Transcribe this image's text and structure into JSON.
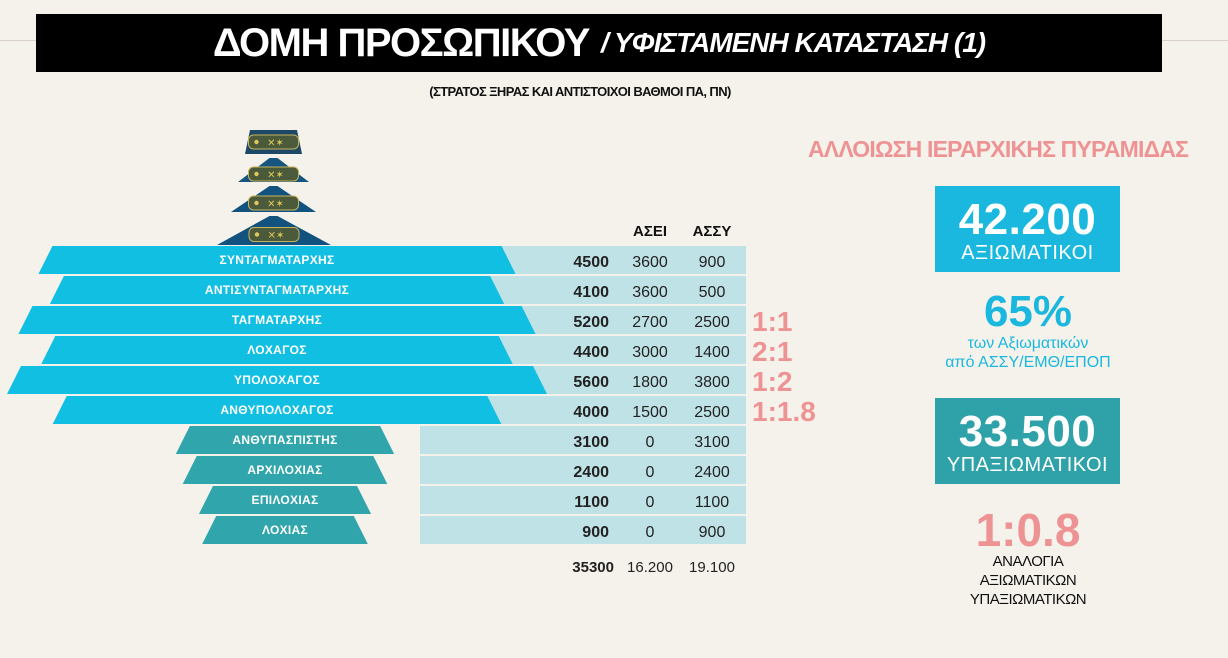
{
  "header": {
    "title_main": "ΔΟΜΗ ΠΡΟΣΩΠΙΚΟΥ",
    "title_sub": "/ ΥΦΙΣΤΑΜΕΝΗ ΚΑΤΑΣΤΑΣΗ  (1)",
    "subtitle": "(ΣΤΡΑΤΟΣ ΞΗΡΑΣ ΚΑΙ ΑΝΤΙΣΤΟΙΧΟΙ ΒΑΘΜΟΙ ΠΑ, ΠΝ)"
  },
  "colors": {
    "officer_bar": "#11bfe3",
    "nco_bar": "#30a5ab",
    "table_row": "#bfe2e6",
    "general_tier": "#12527e",
    "ratio": "#ee9393"
  },
  "insignia": {
    "icon": "rank-epaulette-icon",
    "tiers": 4
  },
  "chart_data": {
    "type": "table",
    "columns": [
      "",
      "",
      "ΑΣΕΙ",
      "ΑΣΣΥ"
    ],
    "rows": [
      {
        "rank": "ΣΥΝΤΑΓΜΑΤΑΡΧΗΣ",
        "total": 4500,
        "asei": 3600,
        "assy": 900,
        "group": "officer",
        "ratio": ""
      },
      {
        "rank": "ΑΝΤΙΣΥΝΤΑΓΜΑΤΑΡΧΗΣ",
        "total": 4100,
        "asei": 3600,
        "assy": 500,
        "group": "officer",
        "ratio": ""
      },
      {
        "rank": "ΤΑΓΜΑΤΑΡΧΗΣ",
        "total": 5200,
        "asei": 2700,
        "assy": 2500,
        "group": "officer",
        "ratio": "1:1"
      },
      {
        "rank": "ΛΟΧΑΓΟΣ",
        "total": 4400,
        "asei": 3000,
        "assy": 1400,
        "group": "officer",
        "ratio": "2:1"
      },
      {
        "rank": "ΥΠΟΛΟΧΑΓΟΣ",
        "total": 5600,
        "asei": 1800,
        "assy": 3800,
        "group": "officer",
        "ratio": "1:2"
      },
      {
        "rank": "ΑΝΘΥΠΟΛΟΧΑΓΟΣ",
        "total": 4000,
        "asei": 1500,
        "assy": 2500,
        "group": "officer",
        "ratio": "1:1.8"
      },
      {
        "rank": "ΑΝΘΥΠΑΣΠΙΣΤΗΣ",
        "total": 3100,
        "asei": 0,
        "assy": 3100,
        "group": "nco",
        "ratio": ""
      },
      {
        "rank": "ΑΡΧΙΛΟΧΙΑΣ",
        "total": 2400,
        "asei": 0,
        "assy": 2400,
        "group": "nco",
        "ratio": ""
      },
      {
        "rank": "ΕΠΙΛΟΧΙΑΣ",
        "total": 1100,
        "asei": 0,
        "assy": 1100,
        "group": "nco",
        "ratio": ""
      },
      {
        "rank": "ΛΟΧΙΑΣ",
        "total": 900,
        "asei": 0,
        "assy": 900,
        "group": "nco",
        "ratio": ""
      }
    ],
    "totals": {
      "total": "35300",
      "asei": "16.200",
      "assy": "19.100"
    }
  },
  "summary": {
    "title": "ΑΛΛΟΙΩΣΗ ΙΕΡΑΡΧΙΚΗΣ ΠΥΡΑΜΙΔΑΣ",
    "officers_count": "42.200",
    "officers_label": "ΑΞΙΩΜΑΤΙΚΟΙ",
    "percent": "65%",
    "percent_line1": "των Αξιωματικών",
    "percent_line2": "από ΑΣΣΥ/ΕΜΘ/ΕΠΟΠ",
    "nco_count": "33.500",
    "nco_label": "ΥΠΑΞΙΩΜΑΤΙΚΟΙ",
    "ratio": "1:0.8",
    "ratio_line1": "ΑΝΑΛΟΓΙΑ",
    "ratio_line2": "ΑΞΙΩΜΑΤΙΚΩΝ",
    "ratio_line3": "ΥΠΑΞΙΩΜΑΤΙΚΩΝ"
  }
}
